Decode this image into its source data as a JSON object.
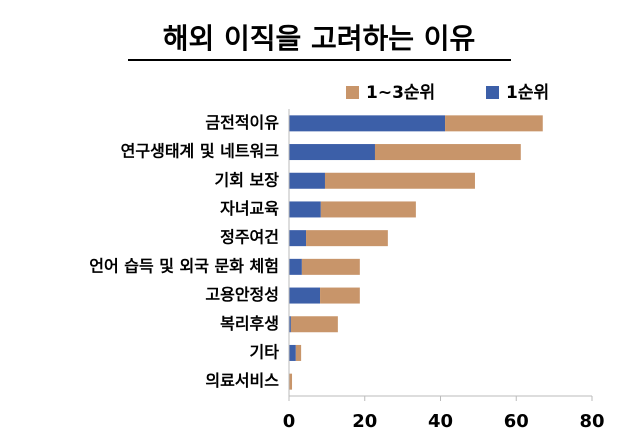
{
  "chart_data": {
    "type": "stacked-barh",
    "title": "해외 이직을 고려하는 이유",
    "categories": [
      "금전적이유",
      "연구생태계 및 네트워크",
      "기회 보장",
      "자녀교육",
      "정주여건",
      "언어 습득 및 외국 문화 체험",
      "고용안정성",
      "복리후생",
      "기타",
      "의료서비스"
    ],
    "series": [
      {
        "name": "1~3순위",
        "color": "#c8956a",
        "values": [
          25.8,
          38.5,
          39.6,
          25.1,
          21.6,
          15.3,
          10.5,
          12.4,
          1.4,
          0.8
        ]
      },
      {
        "name": "1순위",
        "color": "#3c5fa8",
        "values": [
          41.2,
          22.7,
          9.5,
          8.4,
          4.5,
          3.4,
          8.2,
          0.5,
          1.8,
          0
        ]
      }
    ],
    "xlim": [
      0,
      80
    ],
    "xticks": [
      0,
      20,
      40,
      60,
      80
    ],
    "grid": false,
    "legend": "top-right"
  }
}
